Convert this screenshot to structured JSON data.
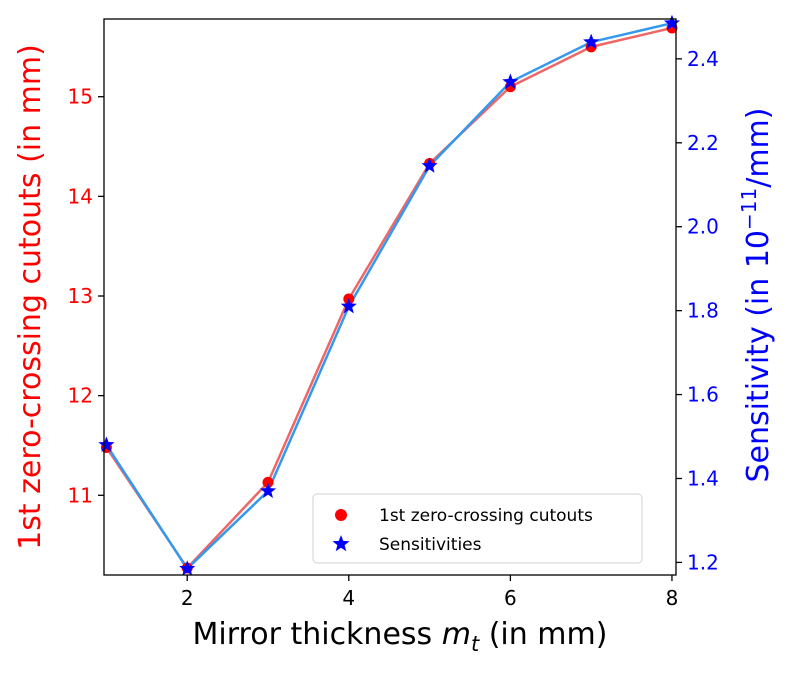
{
  "chart_data": {
    "type": "line",
    "title": "",
    "x": [
      1,
      2,
      3,
      4,
      5,
      6,
      7,
      8
    ],
    "xlim": [
      0.97,
      8.05
    ],
    "xticks": [
      2,
      4,
      6,
      8
    ],
    "xlabel_prefix": "Mirror thickness ",
    "xlabel_var": "m",
    "xlabel_sub": "t",
    "xlabel_suffix": " (in mm)",
    "series": [
      {
        "name": "1st zero-crossing cutouts",
        "axis": "left",
        "values": [
          11.48,
          10.27,
          11.13,
          12.97,
          14.33,
          15.1,
          15.5,
          15.69
        ],
        "marker": "circle",
        "marker_color": "#ff0000",
        "line_color": "#ee6666"
      },
      {
        "name": "Sensitivities",
        "axis": "right",
        "values": [
          1.48,
          1.185,
          1.37,
          1.81,
          2.145,
          2.345,
          2.44,
          2.485
        ],
        "marker": "star",
        "marker_color": "#0000ff",
        "line_color": "#3399ee"
      }
    ],
    "left_axis": {
      "label": "1st zero-crossing cutouts (in mm)",
      "color": "#ff0000",
      "ylim": [
        10.2,
        15.78
      ],
      "ticks": [
        11,
        12,
        13,
        14,
        15
      ]
    },
    "right_axis": {
      "label_prefix": "Sensitivity (in 10",
      "label_sup": "−11",
      "label_suffix": "/mm)",
      "color": "#0000ff",
      "ylim": [
        1.17,
        2.495
      ],
      "ticks": [
        1.2,
        1.4,
        1.6,
        1.8,
        2.0,
        2.2,
        2.4
      ],
      "tick_labels": [
        "1.2",
        "1.4",
        "1.6",
        "1.8",
        "2.0",
        "2.2",
        "2.4"
      ]
    },
    "legend": {
      "location": "lower-right",
      "entries": [
        "1st zero-crossing cutouts",
        "Sensitivities"
      ]
    },
    "grid": false
  }
}
